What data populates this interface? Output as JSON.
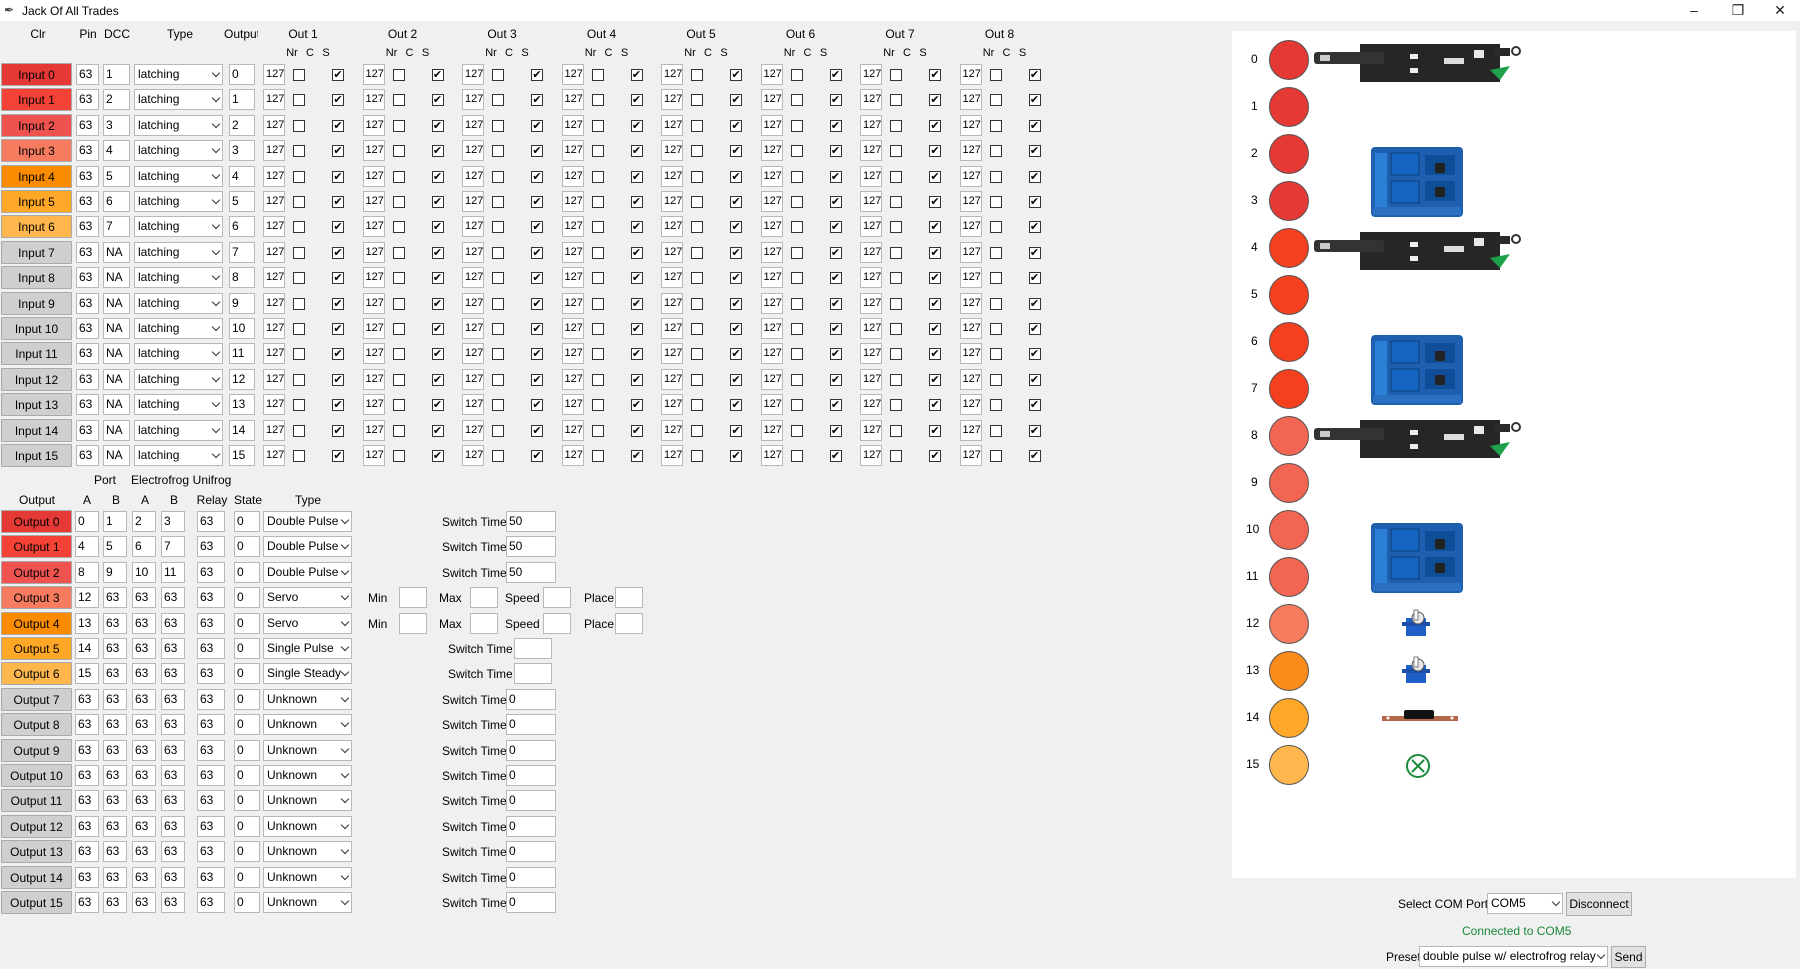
{
  "window": {
    "title": "Jack Of All Trades"
  },
  "input_headers": {
    "clr": "Clr",
    "pin": "Pin",
    "dcc": "DCC",
    "type": "Type",
    "output": "Output",
    "outs": [
      "Out 1",
      "Out 2",
      "Out 3",
      "Out 4",
      "Out 5",
      "Out 6",
      "Out 7",
      "Out 8"
    ],
    "sub": [
      "Nr",
      "C",
      "S"
    ]
  },
  "inputs": [
    {
      "label": "Input 0",
      "pin": "63",
      "dcc": "1",
      "type": "latching",
      "output": "0",
      "color": "#e53935"
    },
    {
      "label": "Input 1",
      "pin": "63",
      "dcc": "2",
      "type": "latching",
      "output": "1",
      "color": "#f44336"
    },
    {
      "label": "Input 2",
      "pin": "63",
      "dcc": "3",
      "type": "latching",
      "output": "2",
      "color": "#ef5350"
    },
    {
      "label": "Input 3",
      "pin": "63",
      "dcc": "4",
      "type": "latching",
      "output": "3",
      "color": "#f77b5f"
    },
    {
      "label": "Input 4",
      "pin": "63",
      "dcc": "5",
      "type": "latching",
      "output": "4",
      "color": "#fb8c00"
    },
    {
      "label": "Input 5",
      "pin": "63",
      "dcc": "6",
      "type": "latching",
      "output": "5",
      "color": "#ffa726"
    },
    {
      "label": "Input 6",
      "pin": "63",
      "dcc": "7",
      "type": "latching",
      "output": "6",
      "color": "#ffb74d"
    },
    {
      "label": "Input 7",
      "pin": "63",
      "dcc": "NA",
      "type": "latching",
      "output": "7",
      "color": "#cfcfcf"
    },
    {
      "label": "Input 8",
      "pin": "63",
      "dcc": "NA",
      "type": "latching",
      "output": "8",
      "color": "#cfcfcf"
    },
    {
      "label": "Input 9",
      "pin": "63",
      "dcc": "NA",
      "type": "latching",
      "output": "9",
      "color": "#cfcfcf"
    },
    {
      "label": "Input 10",
      "pin": "63",
      "dcc": "NA",
      "type": "latching",
      "output": "10",
      "color": "#cfcfcf"
    },
    {
      "label": "Input 11",
      "pin": "63",
      "dcc": "NA",
      "type": "latching",
      "output": "11",
      "color": "#cfcfcf"
    },
    {
      "label": "Input 12",
      "pin": "63",
      "dcc": "NA",
      "type": "latching",
      "output": "12",
      "color": "#cfcfcf"
    },
    {
      "label": "Input 13",
      "pin": "63",
      "dcc": "NA",
      "type": "latching",
      "output": "13",
      "color": "#cfcfcf"
    },
    {
      "label": "Input 14",
      "pin": "63",
      "dcc": "NA",
      "type": "latching",
      "output": "14",
      "color": "#cfcfcf"
    },
    {
      "label": "Input 15",
      "pin": "63",
      "dcc": "NA",
      "type": "latching",
      "output": "15",
      "color": "#cfcfcf"
    }
  ],
  "out_nr_value": "127",
  "output_headers": {
    "port": "Port",
    "electrofrog": "Electrofrog",
    "unifrog": "Unifrog",
    "output": "Output",
    "a": "A",
    "b": "B",
    "relay": "Relay",
    "state": "State",
    "type": "Type"
  },
  "outputs": [
    {
      "label": "Output 0",
      "pa": "0",
      "pb": "1",
      "ea": "2",
      "eb": "3",
      "relay": "63",
      "state": "0",
      "type": "Double Pulse",
      "mode": "switch",
      "switch": "50",
      "color": "#e53935"
    },
    {
      "label": "Output 1",
      "pa": "4",
      "pb": "5",
      "ea": "6",
      "eb": "7",
      "relay": "63",
      "state": "0",
      "type": "Double Pulse",
      "mode": "switch",
      "switch": "50",
      "color": "#f44336"
    },
    {
      "label": "Output 2",
      "pa": "8",
      "pb": "9",
      "ea": "10",
      "eb": "11",
      "relay": "63",
      "state": "0",
      "type": "Double Pulse",
      "mode": "switch",
      "switch": "50",
      "color": "#ef5350"
    },
    {
      "label": "Output 3",
      "pa": "12",
      "pb": "63",
      "ea": "63",
      "eb": "63",
      "relay": "63",
      "state": "0",
      "type": "Servo",
      "mode": "servo",
      "color": "#f77b5f"
    },
    {
      "label": "Output 4",
      "pa": "13",
      "pb": "63",
      "ea": "63",
      "eb": "63",
      "relay": "63",
      "state": "0",
      "type": "Servo",
      "mode": "servo",
      "color": "#fb8c00"
    },
    {
      "label": "Output 5",
      "pa": "14",
      "pb": "63",
      "ea": "63",
      "eb": "63",
      "relay": "63",
      "state": "0",
      "type": "Single Pulse",
      "mode": "switch2",
      "switch": "",
      "color": "#ffa726"
    },
    {
      "label": "Output 6",
      "pa": "15",
      "pb": "63",
      "ea": "63",
      "eb": "63",
      "relay": "63",
      "state": "0",
      "type": "Single Steady",
      "mode": "switch2",
      "switch": "",
      "color": "#ffb74d"
    },
    {
      "label": "Output 7",
      "pa": "63",
      "pb": "63",
      "ea": "63",
      "eb": "63",
      "relay": "63",
      "state": "0",
      "type": "Unknown",
      "mode": "switch",
      "switch": "0",
      "color": "#cfcfcf"
    },
    {
      "label": "Output 8",
      "pa": "63",
      "pb": "63",
      "ea": "63",
      "eb": "63",
      "relay": "63",
      "state": "0",
      "type": "Unknown",
      "mode": "switch",
      "switch": "0",
      "color": "#cfcfcf"
    },
    {
      "label": "Output 9",
      "pa": "63",
      "pb": "63",
      "ea": "63",
      "eb": "63",
      "relay": "63",
      "state": "0",
      "type": "Unknown",
      "mode": "switch",
      "switch": "0",
      "color": "#cfcfcf"
    },
    {
      "label": "Output 10",
      "pa": "63",
      "pb": "63",
      "ea": "63",
      "eb": "63",
      "relay": "63",
      "state": "0",
      "type": "Unknown",
      "mode": "switch",
      "switch": "0",
      "color": "#cfcfcf"
    },
    {
      "label": "Output 11",
      "pa": "63",
      "pb": "63",
      "ea": "63",
      "eb": "63",
      "relay": "63",
      "state": "0",
      "type": "Unknown",
      "mode": "switch",
      "switch": "0",
      "color": "#cfcfcf"
    },
    {
      "label": "Output 12",
      "pa": "63",
      "pb": "63",
      "ea": "63",
      "eb": "63",
      "relay": "63",
      "state": "0",
      "type": "Unknown",
      "mode": "switch",
      "switch": "0",
      "color": "#cfcfcf"
    },
    {
      "label": "Output 13",
      "pa": "63",
      "pb": "63",
      "ea": "63",
      "eb": "63",
      "relay": "63",
      "state": "0",
      "type": "Unknown",
      "mode": "switch",
      "switch": "0",
      "color": "#cfcfcf"
    },
    {
      "label": "Output 14",
      "pa": "63",
      "pb": "63",
      "ea": "63",
      "eb": "63",
      "relay": "63",
      "state": "0",
      "type": "Unknown",
      "mode": "switch",
      "switch": "0",
      "color": "#cfcfcf"
    },
    {
      "label": "Output 15",
      "pa": "63",
      "pb": "63",
      "ea": "63",
      "eb": "63",
      "relay": "63",
      "state": "0",
      "type": "Unknown",
      "mode": "switch",
      "switch": "0",
      "color": "#cfcfcf"
    }
  ],
  "labels": {
    "switch_time": "Switch Time",
    "min": "Min",
    "max": "Max",
    "speed": "Speed",
    "place": "Place"
  },
  "indicators": [
    {
      "n": "0",
      "color": "#e53935",
      "device": "turnout-motor"
    },
    {
      "n": "1",
      "color": "#e53935",
      "device": ""
    },
    {
      "n": "2",
      "color": "#e53935",
      "device": "relay-module"
    },
    {
      "n": "3",
      "color": "#e53935",
      "device": ""
    },
    {
      "n": "4",
      "color": "#f4401e",
      "device": "turnout-motor"
    },
    {
      "n": "5",
      "color": "#f4401e",
      "device": ""
    },
    {
      "n": "6",
      "color": "#f4401e",
      "device": "relay-module"
    },
    {
      "n": "7",
      "color": "#f4401e",
      "device": ""
    },
    {
      "n": "8",
      "color": "#f26552",
      "device": "turnout-motor"
    },
    {
      "n": "9",
      "color": "#f26552",
      "device": ""
    },
    {
      "n": "10",
      "color": "#f26552",
      "device": "relay-module"
    },
    {
      "n": "11",
      "color": "#f26552",
      "device": ""
    },
    {
      "n": "12",
      "color": "#f77b5f",
      "device": "servo"
    },
    {
      "n": "13",
      "color": "#fb8c1a",
      "device": "servo"
    },
    {
      "n": "14",
      "color": "#ffa726",
      "device": "pulse-board"
    },
    {
      "n": "15",
      "color": "#ffb74d",
      "device": "unknown-x"
    }
  ],
  "com": {
    "label": "Select COM Port:",
    "port": "COM5",
    "disconnect": "Disconnect",
    "status": "Connected to COM5",
    "status_color": "#1b8a3a"
  },
  "preset": {
    "label": "Preset",
    "value": "double pulse w/ electrofrog relay",
    "send": "Send"
  }
}
